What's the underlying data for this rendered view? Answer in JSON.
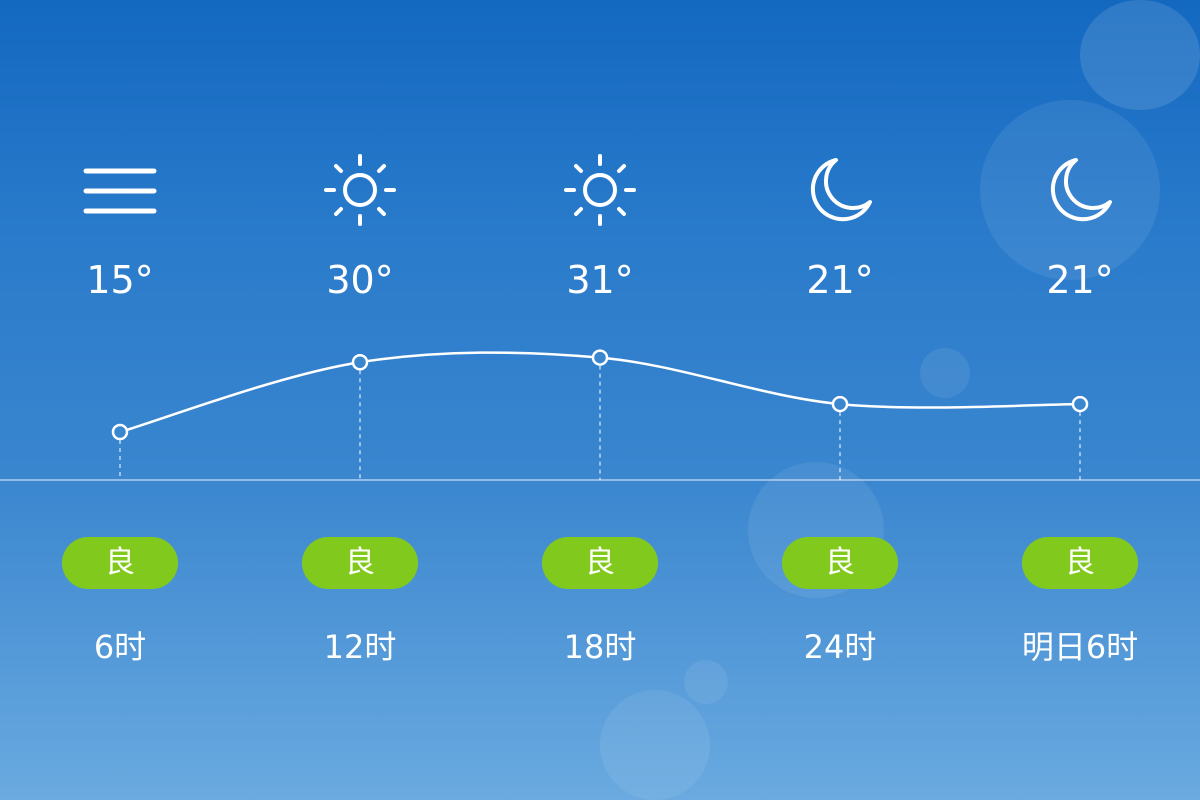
{
  "forecast": [
    {
      "icon": "menu-icon",
      "temp": "15°",
      "aqi": "良",
      "time": "6时"
    },
    {
      "icon": "sun-icon",
      "temp": "30°",
      "aqi": "良",
      "time": "12时"
    },
    {
      "icon": "sun-icon",
      "temp": "31°",
      "aqi": "良",
      "time": "18时"
    },
    {
      "icon": "moon-icon",
      "temp": "21°",
      "aqi": "良",
      "time": "24时"
    },
    {
      "icon": "moon-icon",
      "temp": "21°",
      "aqi": "良",
      "time": "明日6时"
    }
  ],
  "chart_data": {
    "type": "line",
    "categories": [
      "6时",
      "12时",
      "18时",
      "24时",
      "明日6时"
    ],
    "values": [
      15,
      30,
      31,
      21,
      21
    ]
  },
  "colors": {
    "badge": "#82c91e",
    "line": "#ffffff"
  }
}
